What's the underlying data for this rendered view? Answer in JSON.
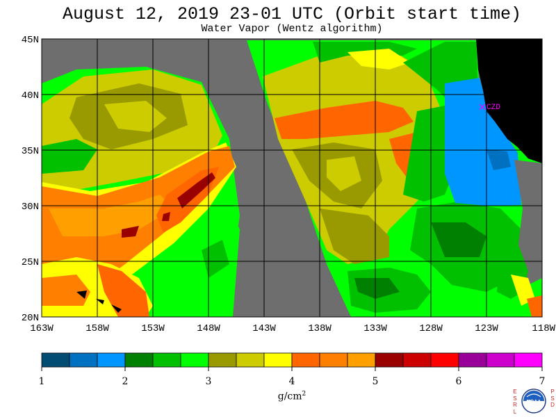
{
  "title": "August 12, 2019  23-01 UTC  (Orbit start time)",
  "subtitle": "Water Vapor (Wentz algorithm)",
  "map": {
    "lat_labels": [
      "45N",
      "40N",
      "35N",
      "30N",
      "25N",
      "20N"
    ],
    "lon_labels": [
      "163W",
      "158W",
      "153W",
      "148W",
      "143W",
      "138W",
      "133W",
      "128W",
      "123W",
      "118W"
    ],
    "lat_values": [
      45,
      40,
      35,
      30,
      25,
      20
    ],
    "lon_values": [
      -163,
      -158,
      -153,
      -148,
      -143,
      -138,
      -133,
      -128,
      -123,
      -118
    ],
    "station_label": "CZD",
    "colors": {
      "no_data": "#6e6e6e",
      "land": "#000000",
      "grid": "#000000",
      "station": "#ff00ff"
    }
  },
  "colorbar": {
    "colors": [
      "#004c73",
      "#0070c0",
      "#0096ff",
      "#008000",
      "#00c000",
      "#00ff00",
      "#999900",
      "#cccc00",
      "#ffff00",
      "#ff6600",
      "#ff8000",
      "#ffa000",
      "#990000",
      "#cc0000",
      "#ff0000",
      "#990099",
      "#cc00cc",
      "#ff00ff"
    ],
    "ticks": [
      "1",
      "2",
      "3",
      "4",
      "5",
      "6",
      "7"
    ],
    "unit": "g/cm",
    "unit_exp": "2"
  },
  "logo": {
    "left_letters": [
      "E",
      "S",
      "R",
      "L"
    ],
    "right_letters": [
      "P",
      "S",
      "D"
    ],
    "text": "NOAA"
  }
}
